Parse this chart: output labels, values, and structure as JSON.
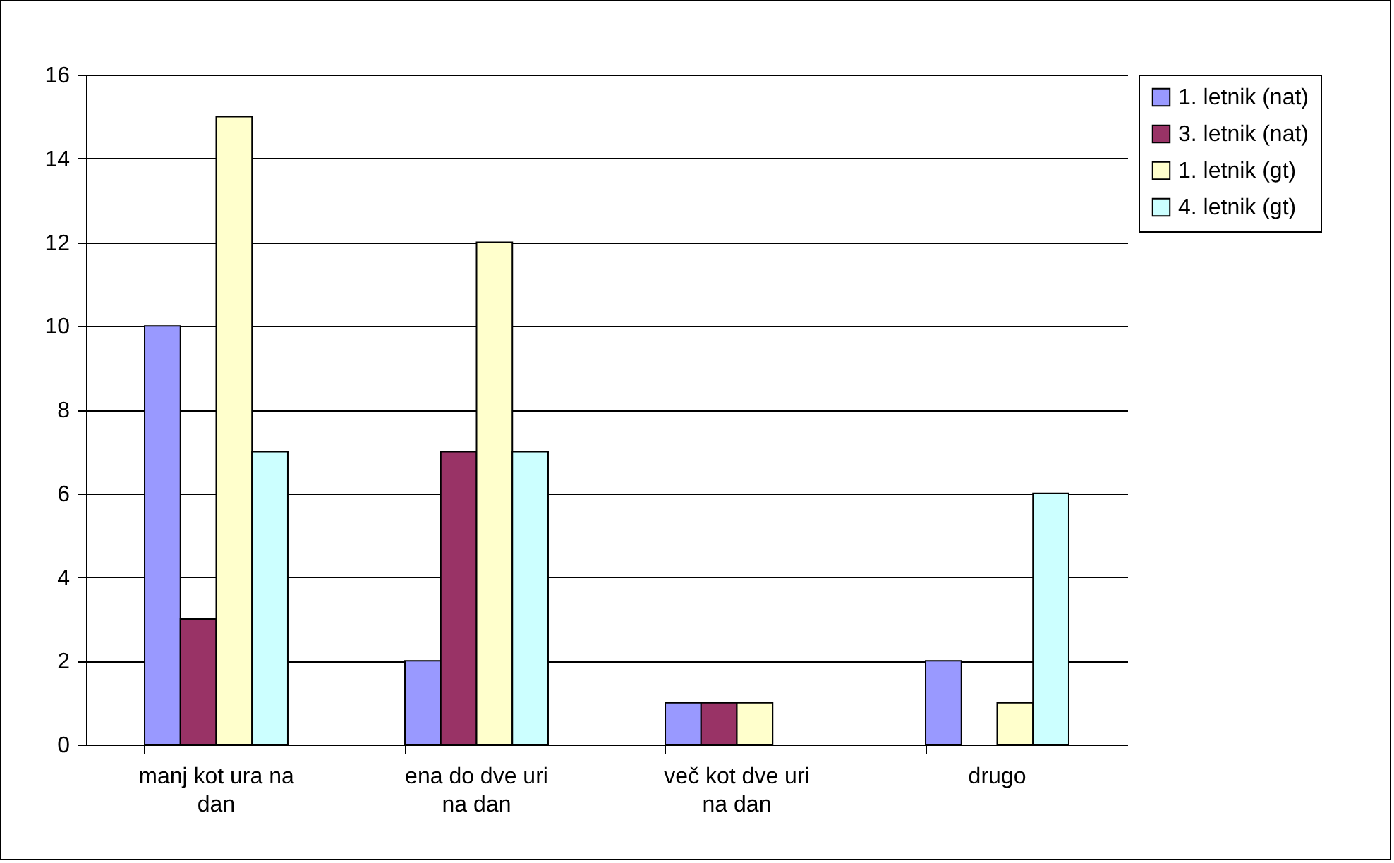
{
  "chart_data": {
    "type": "bar",
    "categories": [
      "manj kot ura na dan",
      "ena do dve uri na dan",
      "več kot dve uri na dan",
      "drugo"
    ],
    "series": [
      {
        "name": "1. letnik (nat)",
        "color": "#9999ff",
        "values": [
          10,
          2,
          1,
          2
        ]
      },
      {
        "name": "3. letnik (nat)",
        "color": "#993366",
        "values": [
          3,
          7,
          1,
          0
        ]
      },
      {
        "name": "1. letnik (gt)",
        "color": "#ffffcc",
        "values": [
          15,
          12,
          1,
          1
        ]
      },
      {
        "name": "4. letnik (gt)",
        "color": "#ccffff",
        "values": [
          7,
          7,
          0,
          6
        ]
      }
    ],
    "ylim": [
      0,
      16
    ],
    "yticks": [
      0,
      2,
      4,
      6,
      8,
      10,
      12,
      14,
      16
    ],
    "grid": "y",
    "legend": "right"
  }
}
